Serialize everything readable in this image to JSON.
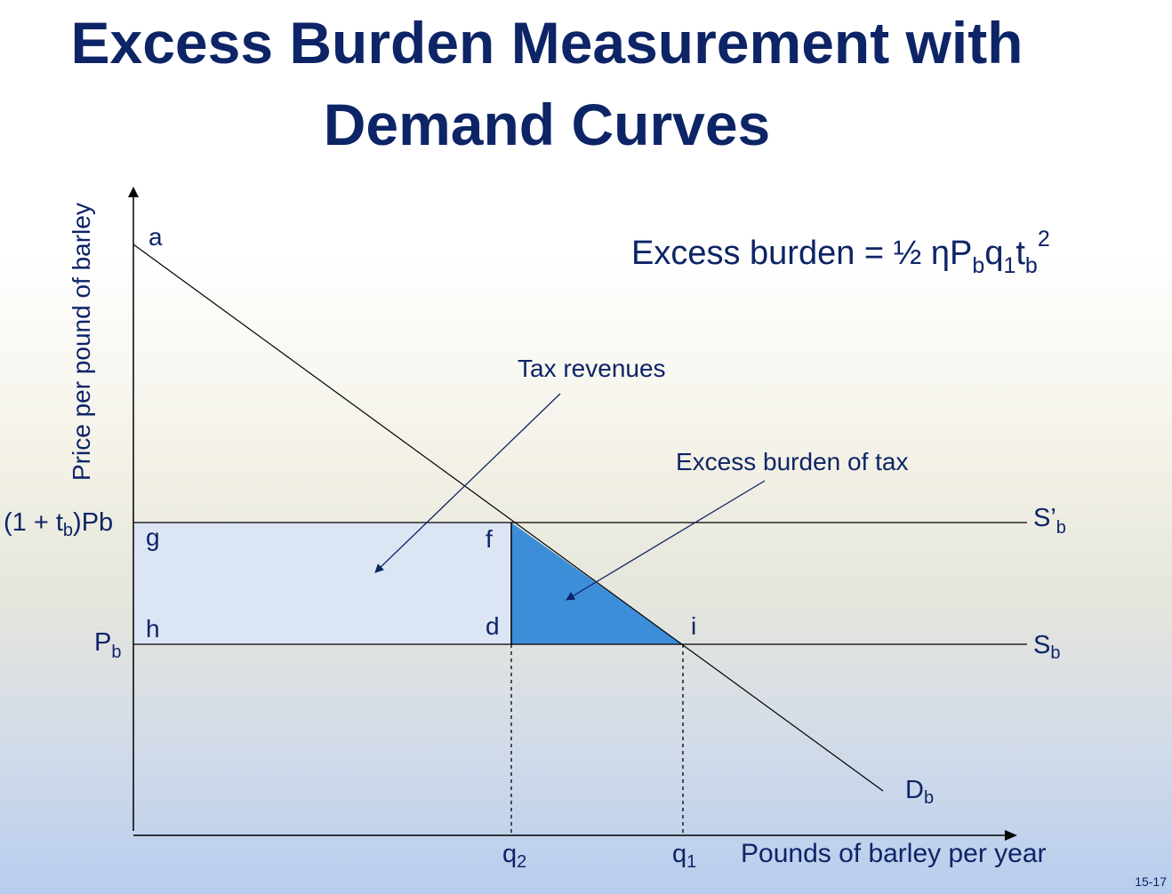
{
  "title": {
    "line1": "Excess Burden Measurement with",
    "line2": "Demand Curves"
  },
  "formula": {
    "lhs": "Excess burden = ½ ηP",
    "sub_b1": "b",
    "q": "q",
    "sub_1": "1",
    "t": "t",
    "sub_b2": "b",
    "sup_2": "2"
  },
  "axes": {
    "y_label": "Price per pound of barley",
    "x_label": "Pounds of barley per year"
  },
  "price_labels": {
    "high_prefix": "(1 + t",
    "high_sub": "b",
    "high_suffix": ")Pb",
    "low_main": "P",
    "low_sub": "b"
  },
  "quantity_labels": {
    "q2_main": "q",
    "q2_sub": "2",
    "q1_main": "q",
    "q1_sub": "1"
  },
  "curve_labels": {
    "supply_taxed_main": "S’",
    "supply_taxed_sub": "b",
    "supply_main": "S",
    "supply_sub": "b",
    "demand_main": "D",
    "demand_sub": "b"
  },
  "point_labels": {
    "a": "a",
    "f": "f",
    "g": "g",
    "h": "h",
    "d": "d",
    "i": "i"
  },
  "annotations": {
    "tax_revenues": "Tax revenues",
    "excess_burden": "Excess burden of tax"
  },
  "colors": {
    "tax_revenue_fill": "#dbe5f4",
    "excess_burden_fill": "#3d8ed8",
    "text": "#0d2466"
  },
  "page_number": "15-17"
}
